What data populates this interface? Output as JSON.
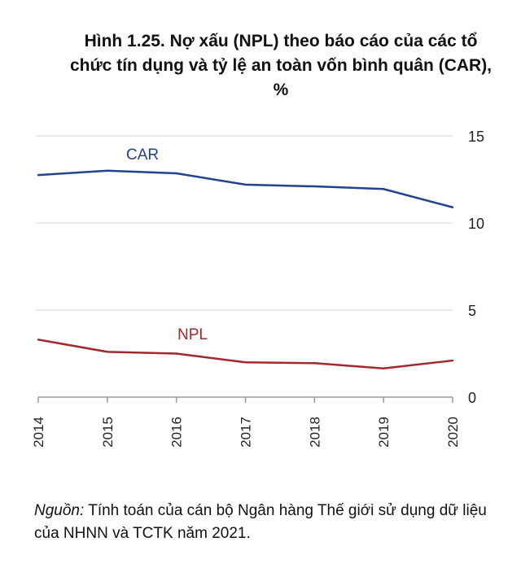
{
  "chart_data": {
    "type": "line",
    "title_lines": [
      "Hình 1.25. Nợ xấu (NPL) theo báo cáo của các tổ",
      "chức tín dụng và tỷ lệ an toàn vốn bình quân (CAR),",
      "%"
    ],
    "x": [
      "2014",
      "2015",
      "2016",
      "2017",
      "2018",
      "2019",
      "2020"
    ],
    "series": [
      {
        "name": "CAR",
        "color": "#24418f",
        "values": [
          12.75,
          13.0,
          12.85,
          12.2,
          12.1,
          11.95,
          10.9
        ]
      },
      {
        "name": "NPL",
        "color": "#a3282c",
        "values": [
          3.3,
          2.6,
          2.5,
          2.0,
          1.95,
          1.65,
          2.1
        ]
      }
    ],
    "yticks": [
      "0",
      "5",
      "10",
      "15"
    ],
    "ylim": [
      0,
      15
    ],
    "y_axis_side": "right",
    "grid": true
  },
  "source": {
    "label": "Nguồn:",
    "text": " Tính toán của cán bộ Ngân hàng Thế giới sử dụng dữ liệu của NHNN và TCTK năm 2021."
  }
}
